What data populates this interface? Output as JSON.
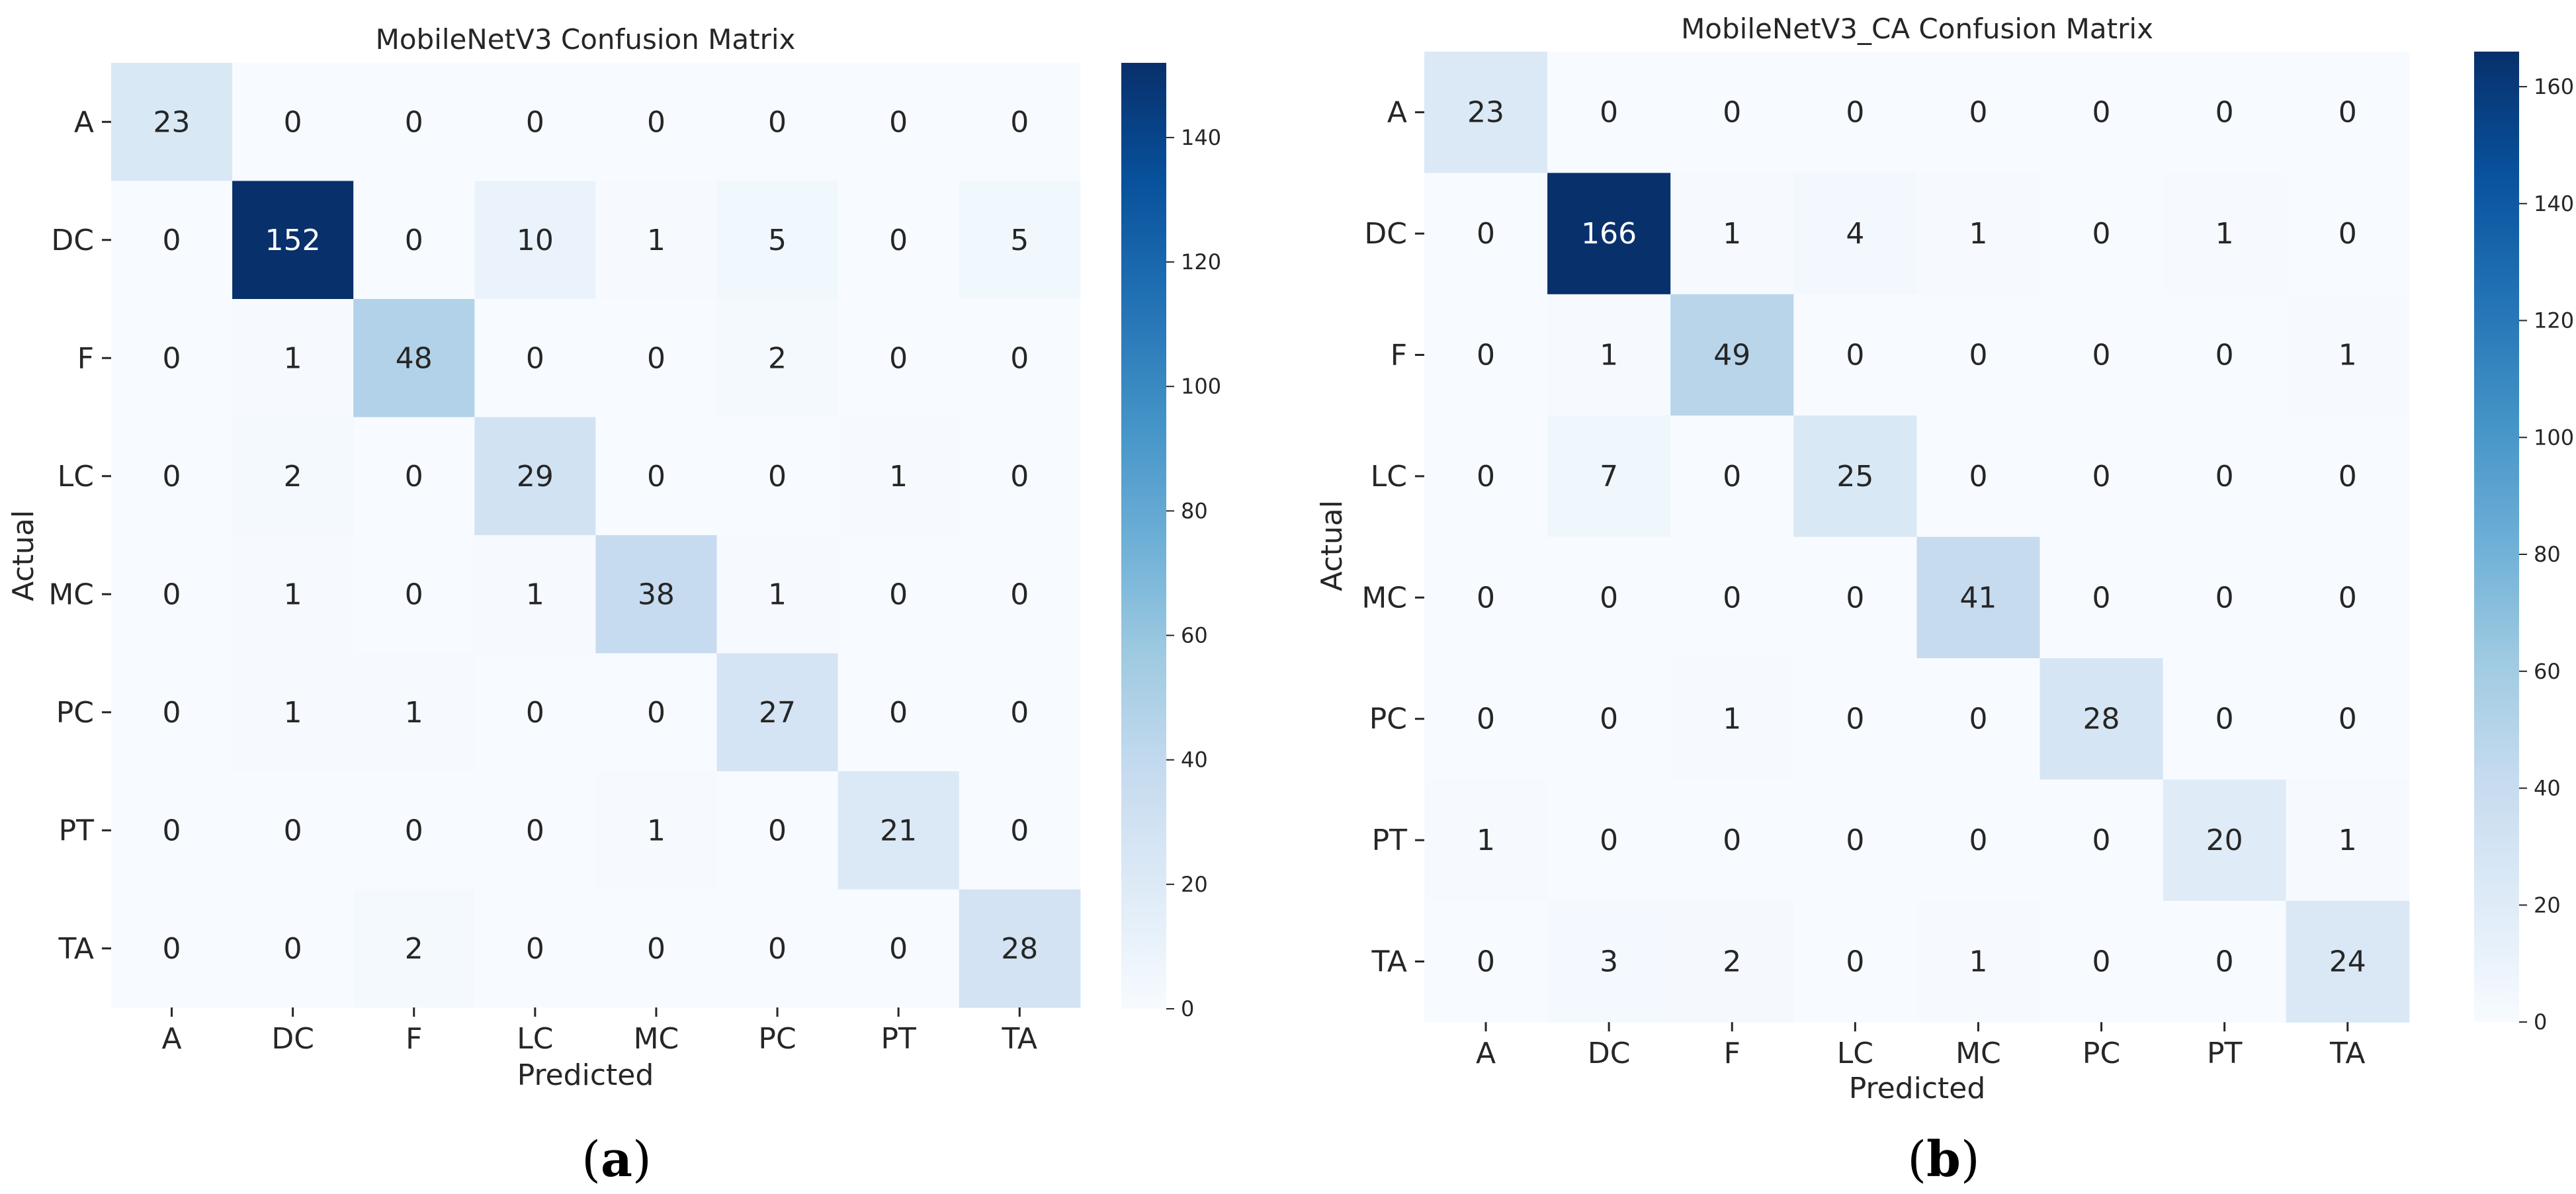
{
  "figure": {
    "panels": [
      {
        "label_open": "(",
        "label_letter": "a",
        "label_close": ")"
      },
      {
        "label_open": "(",
        "label_letter": "b",
        "label_close": ")"
      }
    ]
  },
  "chart_data": [
    {
      "type": "heatmap",
      "title": "MobileNetV3 Confusion Matrix",
      "xlabel": "Predicted",
      "ylabel": "Actual",
      "x_categories": [
        "A",
        "DC",
        "F",
        "LC",
        "MC",
        "PC",
        "PT",
        "TA"
      ],
      "y_categories": [
        "A",
        "DC",
        "F",
        "LC",
        "MC",
        "PC",
        "PT",
        "TA"
      ],
      "values": [
        [
          23,
          0,
          0,
          0,
          0,
          0,
          0,
          0
        ],
        [
          0,
          152,
          0,
          10,
          1,
          5,
          0,
          5
        ],
        [
          0,
          1,
          48,
          0,
          0,
          2,
          0,
          0
        ],
        [
          0,
          2,
          0,
          29,
          0,
          0,
          1,
          0
        ],
        [
          0,
          1,
          0,
          1,
          38,
          1,
          0,
          0
        ],
        [
          0,
          1,
          1,
          0,
          0,
          27,
          0,
          0
        ],
        [
          0,
          0,
          0,
          0,
          1,
          0,
          21,
          0
        ],
        [
          0,
          0,
          2,
          0,
          0,
          0,
          0,
          28
        ]
      ],
      "colorbar": {
        "min": 0,
        "max": 152,
        "ticks": [
          0,
          20,
          40,
          60,
          80,
          100,
          120,
          140
        ]
      },
      "colormap": "Blues"
    },
    {
      "type": "heatmap",
      "title": "MobileNetV3_CA Confusion Matrix",
      "xlabel": "Predicted",
      "ylabel": "Actual",
      "x_categories": [
        "A",
        "DC",
        "F",
        "LC",
        "MC",
        "PC",
        "PT",
        "TA"
      ],
      "y_categories": [
        "A",
        "DC",
        "F",
        "LC",
        "MC",
        "PC",
        "PT",
        "TA"
      ],
      "values": [
        [
          23,
          0,
          0,
          0,
          0,
          0,
          0,
          0
        ],
        [
          0,
          166,
          1,
          4,
          1,
          0,
          1,
          0
        ],
        [
          0,
          1,
          49,
          0,
          0,
          0,
          0,
          1
        ],
        [
          0,
          7,
          0,
          25,
          0,
          0,
          0,
          0
        ],
        [
          0,
          0,
          0,
          0,
          41,
          0,
          0,
          0
        ],
        [
          0,
          0,
          1,
          0,
          0,
          28,
          0,
          0
        ],
        [
          1,
          0,
          0,
          0,
          0,
          0,
          20,
          1
        ],
        [
          0,
          3,
          2,
          0,
          1,
          0,
          0,
          24
        ]
      ],
      "colorbar": {
        "min": 0,
        "max": 166,
        "ticks": [
          0,
          20,
          40,
          60,
          80,
          100,
          120,
          140,
          160
        ]
      },
      "colormap": "Blues"
    }
  ]
}
